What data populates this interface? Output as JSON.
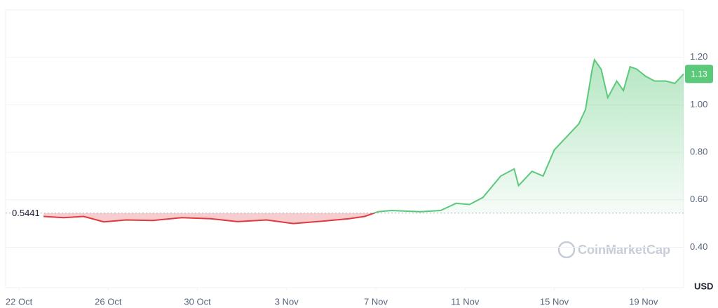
{
  "chart_data": {
    "type": "line",
    "x": [
      1.1,
      2,
      2.9,
      3.8,
      4.8,
      6.0,
      7.3,
      8.6,
      9.8,
      11.1,
      12.3,
      13.6,
      14.8,
      15.5,
      16.1,
      16.7,
      18.0,
      18.9,
      19.6,
      20.2,
      20.8,
      21.6,
      22.2,
      22.4,
      23.0,
      23.5,
      24.0,
      24.6,
      25.1,
      25.4,
      25.7,
      25.8,
      26.1,
      26.4,
      26.8,
      27.1,
      27.4,
      27.7,
      28.1,
      28.5,
      29.0,
      29.4,
      29.8
    ],
    "values": [
      0.53,
      0.525,
      0.53,
      0.507,
      0.515,
      0.513,
      0.525,
      0.52,
      0.508,
      0.515,
      0.5,
      0.51,
      0.52,
      0.53,
      0.55,
      0.555,
      0.55,
      0.555,
      0.585,
      0.58,
      0.61,
      0.7,
      0.73,
      0.66,
      0.72,
      0.7,
      0.81,
      0.87,
      0.92,
      0.98,
      1.15,
      1.19,
      1.15,
      1.03,
      1.1,
      1.06,
      1.16,
      1.15,
      1.12,
      1.1,
      1.1,
      1.09,
      1.13
    ],
    "baseline": 0.5441,
    "last_price": 1.13,
    "up_color": "#5cc97a",
    "down_color": "#e0393e",
    "xlim": [
      -0.6,
      29.8
    ],
    "xticks": [
      {
        "value": 0,
        "label": "22 Oct"
      },
      {
        "value": 4,
        "label": "26 Oct"
      },
      {
        "value": 8,
        "label": "30 Oct"
      },
      {
        "value": 12,
        "label": "3 Nov"
      },
      {
        "value": 16,
        "label": "7 Nov"
      },
      {
        "value": 20,
        "label": "11 Nov"
      },
      {
        "value": 24,
        "label": "15 Nov"
      },
      {
        "value": 28,
        "label": "19 Nov"
      }
    ],
    "ylim": [
      0.23,
      1.4
    ],
    "yticks": [
      {
        "value": 0.4,
        "label": "0.40"
      },
      {
        "value": 0.6,
        "label": "0.60"
      },
      {
        "value": 0.8,
        "label": "0.80"
      },
      {
        "value": 1.0,
        "label": "1.00"
      },
      {
        "value": 1.2,
        "label": "1.20"
      }
    ],
    "y_unit": "USD",
    "watermark": "CoinMarketCap",
    "grid": true
  }
}
